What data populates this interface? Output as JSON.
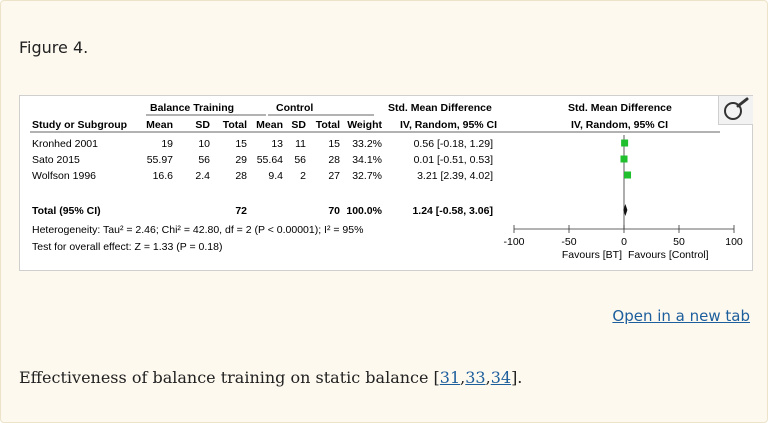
{
  "figure_label": "Figure 4.",
  "open_link": "Open in a new tab",
  "caption": {
    "text": "Effectiveness of balance training on static balance [",
    "refs": [
      "31",
      "33",
      "34"
    ],
    "sep": ",",
    "end": "]."
  },
  "table": {
    "group_headers": {
      "bt": "Balance Training",
      "control": "Control",
      "smd": "Std. Mean Difference",
      "smd_plot": "Std. Mean Difference"
    },
    "col_headers": {
      "study": "Study or Subgroup",
      "mean1": "Mean",
      "sd1": "SD",
      "total1": "Total",
      "mean2": "Mean",
      "sd2": "SD",
      "total2": "Total",
      "weight": "Weight",
      "ci": "IV, Random, 95% CI",
      "ci_plot": "IV, Random, 95% CI"
    },
    "rows": [
      {
        "study": "Kronhed 2001",
        "mean1": "19",
        "sd1": "10",
        "total1": "15",
        "mean2": "13",
        "sd2": "11",
        "total2": "15",
        "weight": "33.2%",
        "ci": "0.56 [-0.18, 1.29]"
      },
      {
        "study": "Sato 2015",
        "mean1": "55.97",
        "sd1": "56",
        "total1": "29",
        "mean2": "55.64",
        "sd2": "56",
        "total2": "28",
        "weight": "34.1%",
        "ci": "0.01 [-0.51, 0.53]"
      },
      {
        "study": "Wolfson 1996",
        "mean1": "16.6",
        "sd1": "2.4",
        "total1": "28",
        "mean2": "9.4",
        "sd2": "2",
        "total2": "27",
        "weight": "32.7%",
        "ci": "3.21 [2.39, 4.02]"
      }
    ],
    "total": {
      "study": "Total (95% CI)",
      "total1": "72",
      "total2": "70",
      "weight": "100.0%",
      "ci": "1.24 [-0.58, 3.06]"
    },
    "heterogeneity": "Heterogeneity: Tau² = 2.46; Chi² = 42.80, df = 2 (P < 0.00001); I² = 95%",
    "overall_effect": "Test for overall effect: Z = 1.33 (P = 0.18)"
  },
  "chart_data": {
    "type": "scatter",
    "xlim": [
      -100,
      100
    ],
    "xticks": [
      "-100",
      "-50",
      "0",
      "50",
      "100"
    ],
    "xtick_values": [
      -100,
      -50,
      0,
      50,
      100
    ],
    "studies": [
      {
        "estimate": 0.56,
        "ci": [
          -0.18,
          1.29
        ],
        "weight": 33.2
      },
      {
        "estimate": 0.01,
        "ci": [
          -0.51,
          0.53
        ],
        "weight": 34.1
      },
      {
        "estimate": 3.21,
        "ci": [
          2.39,
          4.02
        ],
        "weight": 32.7
      }
    ],
    "pooled": {
      "estimate": 1.24,
      "ci": [
        -0.58,
        3.06
      ]
    },
    "favours_left": "Favours [BT]",
    "favours_right": "Favours [Control]",
    "marker_color": "#1fbf2e"
  }
}
